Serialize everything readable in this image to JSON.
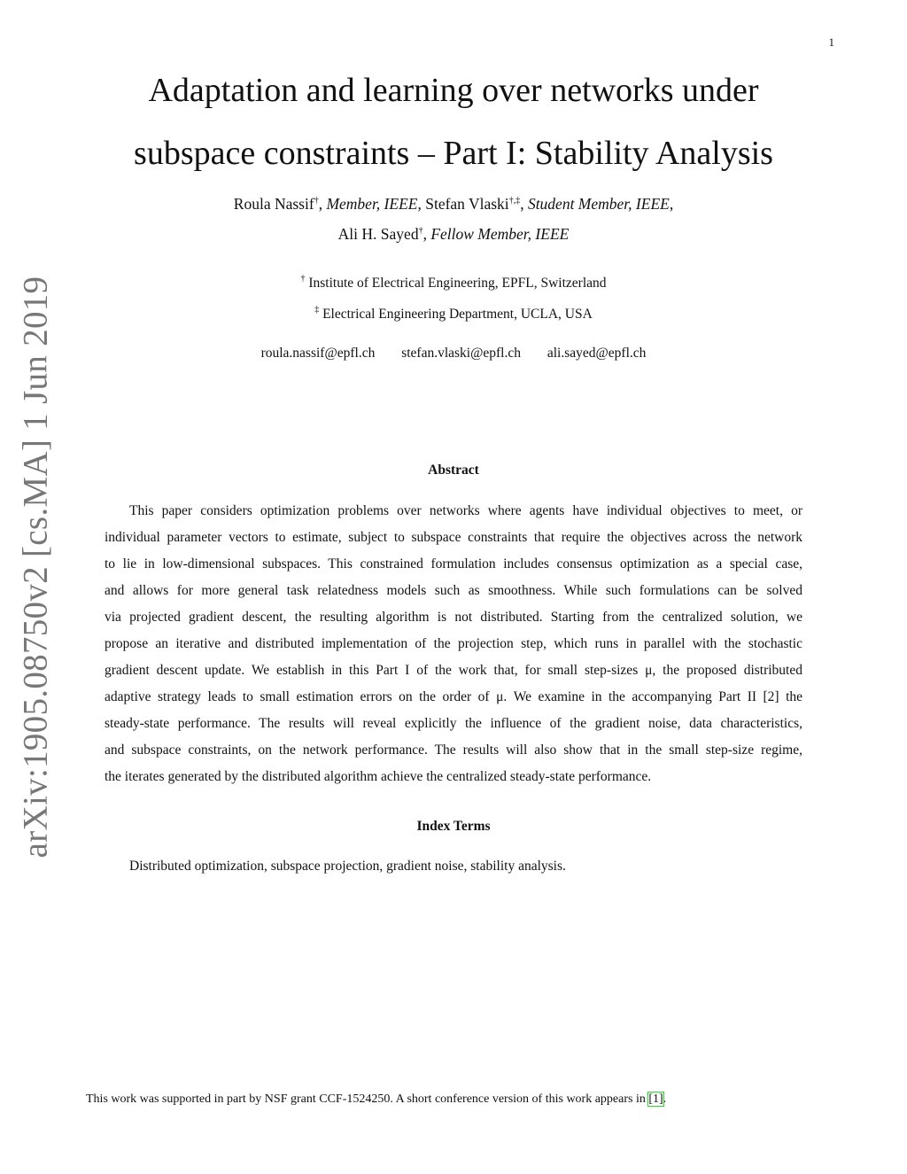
{
  "page_number": "1",
  "arxiv_stamp": "arXiv:1905.08750v2  [cs.MA]  1 Jun 2019",
  "title_lines": [
    "Adaptation and learning over networks under",
    "subspace constraints – Part I: Stability Analysis"
  ],
  "authors": {
    "a1_name": "Roula Nassif",
    "a1_mark": "†",
    "a1_role": "Member, IEEE",
    "a2_name": "Stefan Vlaski",
    "a2_mark": "†,‡",
    "a2_role": "Student Member, IEEE",
    "a3_name": "Ali H. Sayed",
    "a3_mark": "†",
    "a3_role": "Fellow Member, IEEE"
  },
  "affiliations": [
    {
      "mark": "†",
      "text": "Institute of Electrical Engineering, EPFL, Switzerland"
    },
    {
      "mark": "‡",
      "text": "Electrical Engineering Department, UCLA, USA"
    }
  ],
  "emails": [
    "roula.nassif@epfl.ch",
    "stefan.vlaski@epfl.ch",
    "ali.sayed@epfl.ch"
  ],
  "abstract": {
    "heading": "Abstract",
    "lines": [
      "This paper considers optimization problems over networks where agents have individual objectives to meet, or",
      "individual parameter vectors to estimate, subject to subspace constraints that require the objectives across the network",
      "to lie in low-dimensional subspaces. This constrained formulation includes consensus optimization as a special case,",
      "and allows for more general task relatedness models such as smoothness. While such formulations can be solved",
      "via projected gradient descent, the resulting algorithm is not distributed. Starting from the centralized solution, we",
      "propose an iterative and distributed implementation of the projection step, which runs in parallel with the stochastic",
      "gradient descent update. We establish in this Part I of the work that, for small step-sizes μ, the proposed distributed",
      "adaptive strategy leads to small estimation errors on the order of μ. We examine in the accompanying Part II [2] the",
      "steady-state performance. The results will reveal explicitly the influence of the gradient noise, data characteristics,",
      "and subspace constraints, on the network performance. The results will also show that in the small step-size regime,",
      "the iterates generated by the distributed algorithm achieve the centralized steady-state performance."
    ]
  },
  "index_terms": {
    "heading": "Index Terms",
    "text": "Distributed optimization, subspace projection, gradient noise, stability analysis."
  },
  "footnote": {
    "text": "This work was supported in part by NSF grant CCF-1524250. A short conference version of this work appears in ",
    "citation": "[1]",
    "end": "."
  },
  "colors": {
    "citation_box": "#22dd22",
    "arxiv_stamp": "#777777"
  }
}
